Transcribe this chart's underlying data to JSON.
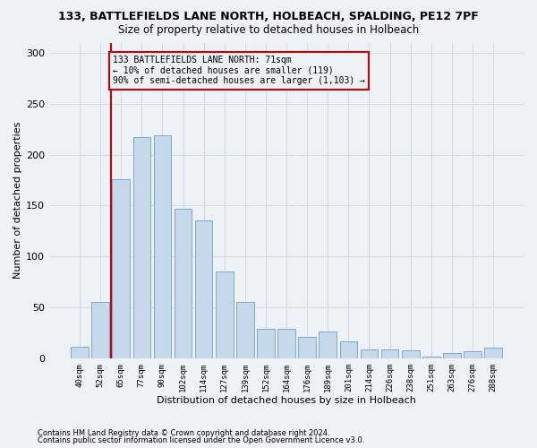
{
  "title": "133, BATTLEFIELDS LANE NORTH, HOLBEACH, SPALDING, PE12 7PF",
  "subtitle": "Size of property relative to detached houses in Holbeach",
  "xlabel": "Distribution of detached houses by size in Holbeach",
  "ylabel": "Number of detached properties",
  "footer_line1": "Contains HM Land Registry data © Crown copyright and database right 2024.",
  "footer_line2": "Contains public sector information licensed under the Open Government Licence v3.0.",
  "bar_labels": [
    "40sqm",
    "52sqm",
    "65sqm",
    "77sqm",
    "90sqm",
    "102sqm",
    "114sqm",
    "127sqm",
    "139sqm",
    "152sqm",
    "164sqm",
    "176sqm",
    "189sqm",
    "201sqm",
    "214sqm",
    "226sqm",
    "238sqm",
    "251sqm",
    "263sqm",
    "276sqm",
    "288sqm"
  ],
  "bar_values": [
    11,
    55,
    176,
    217,
    219,
    147,
    135,
    85,
    55,
    29,
    29,
    21,
    26,
    17,
    9,
    9,
    8,
    2,
    5,
    7,
    10
  ],
  "bar_color": "#c8d8eb",
  "bar_edgecolor": "#7aabcc",
  "grid_color": "#d0dce8",
  "background_color": "#eef2f7",
  "annotation_line1": "133 BATTLEFIELDS LANE NORTH: 71sqm",
  "annotation_line2": "← 10% of detached houses are smaller (119)",
  "annotation_line3": "90% of semi-detached houses are larger (1,103) →",
  "annotation_box_edgecolor": "#cc0000",
  "vline_color": "#cc0000",
  "vline_x": 1.5,
  "ylim": [
    0,
    310
  ],
  "yticks": [
    0,
    50,
    100,
    150,
    200,
    250,
    300
  ]
}
